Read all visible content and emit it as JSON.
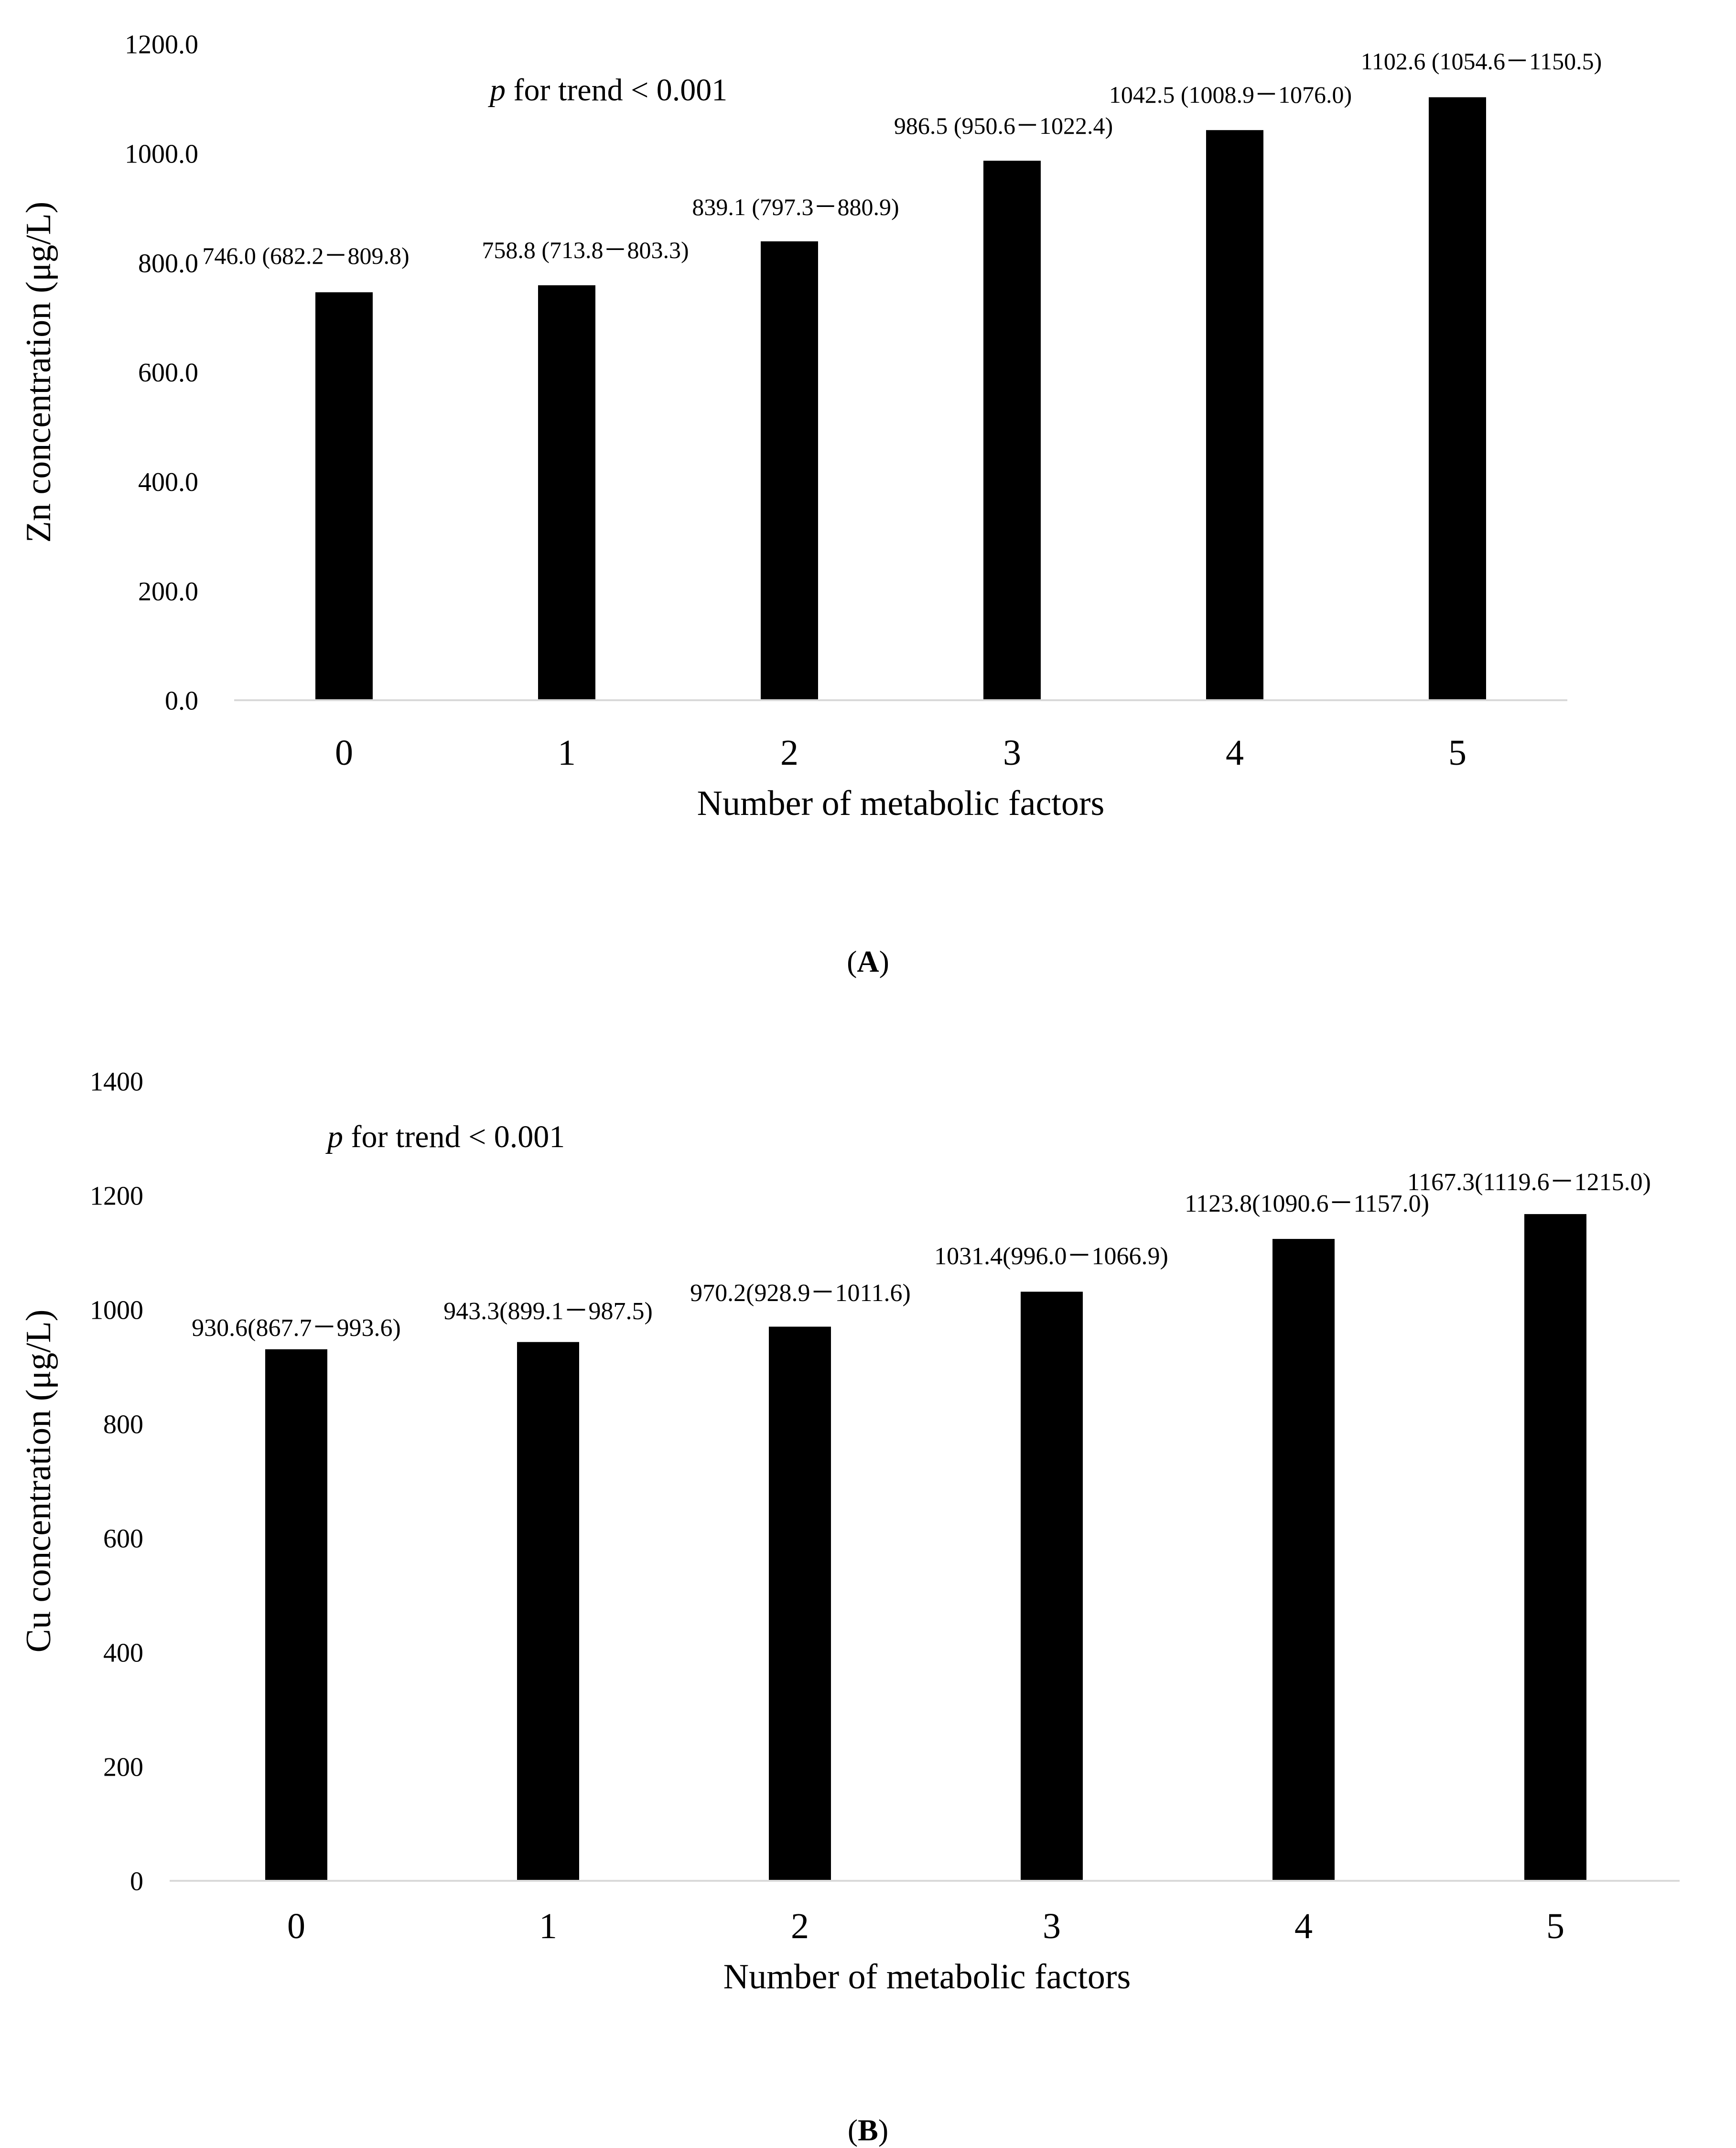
{
  "chart_data": [
    {
      "panel": "A",
      "type": "bar",
      "title": "",
      "annotation": {
        "italic": "p",
        "text": " for trend < 0.001"
      },
      "xlabel": "Number of metabolic factors",
      "ylabel": "Zn concentration (μg/L)",
      "categories": [
        "0",
        "1",
        "2",
        "3",
        "4",
        "5"
      ],
      "values": [
        746.0,
        758.8,
        839.1,
        986.5,
        1042.5,
        1102.6
      ],
      "data_labels": [
        "746.0 (682.2－809.8)",
        "758.8 (713.8－803.3)",
        "839.1 (797.3－880.9)",
        "986.5 (950.6－1022.4)",
        "1042.5 (1008.9－1076.0)",
        "1102.6 (1054.6－1150.5)"
      ],
      "ylim": [
        0,
        1200
      ],
      "yticks": [
        0,
        200,
        400,
        600,
        800,
        1000,
        1200
      ],
      "ytick_labels": [
        "0.0",
        "200.0",
        "400.0",
        "600.0",
        "800.0",
        "1000.0",
        "1200.0"
      ],
      "grid": false,
      "bar_color": "#000000"
    },
    {
      "panel": "B",
      "type": "bar",
      "title": "",
      "annotation": {
        "italic": "p",
        "text": " for trend < 0.001"
      },
      "xlabel": "Number of metabolic factors",
      "ylabel": "Cu concentration (μg/L)",
      "categories": [
        "0",
        "1",
        "2",
        "3",
        "4",
        "5"
      ],
      "values": [
        930.6,
        943.3,
        970.2,
        1031.4,
        1123.8,
        1167.3
      ],
      "data_labels": [
        "930.6(867.7－993.6)",
        "943.3(899.1－987.5)",
        "970.2(928.9－1011.6)",
        "1031.4(996.0－1066.9)",
        "1123.8(1090.6－1157.0)",
        "1167.3(1119.6－1215.0)"
      ],
      "ylim": [
        0,
        1400
      ],
      "yticks": [
        0,
        200,
        400,
        600,
        800,
        1000,
        1200,
        1400
      ],
      "ytick_labels": [
        "0",
        "200",
        "400",
        "600",
        "800",
        "1000",
        "1200",
        "1400"
      ],
      "grid": false,
      "bar_color": "#000000"
    }
  ],
  "panel_labels": [
    "A",
    "B"
  ],
  "colors": {
    "bar": "#000000",
    "axis": "#d9d9d9",
    "text": "#000000",
    "background": "#ffffff"
  }
}
